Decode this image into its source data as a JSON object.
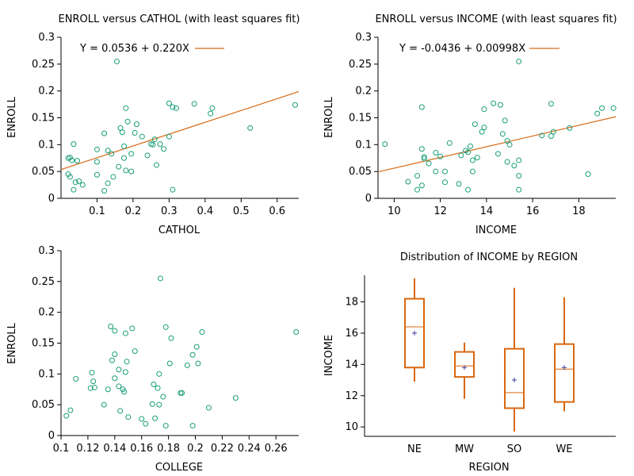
{
  "chart_data": [
    {
      "type": "scatter",
      "title": "ENROLL versus CATHOL (with least squares fit)",
      "xlabel": "CATHOL",
      "ylabel": "ENROLL",
      "xlim": [
        0,
        0.66
      ],
      "ylim": [
        0,
        0.3
      ],
      "xticks": [
        "0.1",
        "0.2",
        "0.3",
        "0.4",
        "0.5",
        "0.6"
      ],
      "yticks": [
        "0",
        "0.05",
        "0.1",
        "0.15",
        "0.2",
        "0.25",
        "0.3"
      ],
      "fit_label": "Y = 0.0536 + 0.220X",
      "fit": {
        "intercept": 0.0536,
        "slope": 0.22
      },
      "grid": false,
      "legend": "top-left",
      "points": [
        [
          0.155,
          0.255
        ],
        [
          0.3,
          0.177
        ],
        [
          0.31,
          0.17
        ],
        [
          0.32,
          0.168
        ],
        [
          0.18,
          0.168
        ],
        [
          0.37,
          0.176
        ],
        [
          0.42,
          0.168
        ],
        [
          0.415,
          0.158
        ],
        [
          0.525,
          0.131
        ],
        [
          0.65,
          0.174
        ],
        [
          0.185,
          0.143
        ],
        [
          0.165,
          0.131
        ],
        [
          0.21,
          0.138
        ],
        [
          0.17,
          0.123
        ],
        [
          0.12,
          0.121
        ],
        [
          0.205,
          0.122
        ],
        [
          0.225,
          0.115
        ],
        [
          0.26,
          0.11
        ],
        [
          0.3,
          0.115
        ],
        [
          0.25,
          0.101
        ],
        [
          0.255,
          0.1
        ],
        [
          0.275,
          0.101
        ],
        [
          0.285,
          0.092
        ],
        [
          0.1,
          0.091
        ],
        [
          0.13,
          0.089
        ],
        [
          0.14,
          0.083
        ],
        [
          0.175,
          0.097
        ],
        [
          0.195,
          0.083
        ],
        [
          0.24,
          0.08
        ],
        [
          0.035,
          0.101
        ],
        [
          0.025,
          0.076
        ],
        [
          0.03,
          0.071
        ],
        [
          0.02,
          0.075
        ],
        [
          0.045,
          0.07
        ],
        [
          0.1,
          0.068
        ],
        [
          0.175,
          0.075
        ],
        [
          0.16,
          0.059
        ],
        [
          0.265,
          0.062
        ],
        [
          0.18,
          0.052
        ],
        [
          0.195,
          0.05
        ],
        [
          0.02,
          0.045
        ],
        [
          0.025,
          0.04
        ],
        [
          0.1,
          0.044
        ],
        [
          0.04,
          0.03
        ],
        [
          0.05,
          0.032
        ],
        [
          0.06,
          0.025
        ],
        [
          0.13,
          0.028
        ],
        [
          0.145,
          0.04
        ],
        [
          0.035,
          0.016
        ],
        [
          0.12,
          0.014
        ],
        [
          0.31,
          0.016
        ]
      ]
    },
    {
      "type": "scatter",
      "title": "ENROLL versus INCOME (with least squares fit)",
      "xlabel": "INCOME",
      "ylabel": "ENROLL",
      "xlim": [
        9.3,
        19.6
      ],
      "ylim": [
        0,
        0.3
      ],
      "xticks": [
        "10",
        "12",
        "14",
        "16",
        "18"
      ],
      "yticks": [
        "0",
        "0.05",
        "0.1",
        "0.15",
        "0.2",
        "0.25",
        "0.3"
      ],
      "fit_label": "Y = -0.0436 + 0.00998X",
      "fit": {
        "intercept": -0.0436,
        "slope": 0.00998
      },
      "grid": false,
      "legend": "top-left",
      "points": [
        [
          15.4,
          0.255
        ],
        [
          14.3,
          0.177
        ],
        [
          14.6,
          0.174
        ],
        [
          16.8,
          0.176
        ],
        [
          11.2,
          0.17
        ],
        [
          19.0,
          0.168
        ],
        [
          19.5,
          0.168
        ],
        [
          13.9,
          0.166
        ],
        [
          18.8,
          0.158
        ],
        [
          14.8,
          0.145
        ],
        [
          13.5,
          0.138
        ],
        [
          13.9,
          0.132
        ],
        [
          13.8,
          0.124
        ],
        [
          16.9,
          0.124
        ],
        [
          14.7,
          0.12
        ],
        [
          16.4,
          0.117
        ],
        [
          16.8,
          0.116
        ],
        [
          17.6,
          0.131
        ],
        [
          14.9,
          0.107
        ],
        [
          9.6,
          0.101
        ],
        [
          12.4,
          0.103
        ],
        [
          13.3,
          0.097
        ],
        [
          15.0,
          0.1
        ],
        [
          11.2,
          0.092
        ],
        [
          13.1,
          0.089
        ],
        [
          13.2,
          0.086
        ],
        [
          14.5,
          0.083
        ],
        [
          11.8,
          0.085
        ],
        [
          12.0,
          0.078
        ],
        [
          12.9,
          0.08
        ],
        [
          11.3,
          0.077
        ],
        [
          11.3,
          0.074
        ],
        [
          13.6,
          0.076
        ],
        [
          13.4,
          0.071
        ],
        [
          15.4,
          0.071
        ],
        [
          14.9,
          0.068
        ],
        [
          11.5,
          0.065
        ],
        [
          15.2,
          0.061
        ],
        [
          11.8,
          0.05
        ],
        [
          13.4,
          0.05
        ],
        [
          12.2,
          0.05
        ],
        [
          15.4,
          0.042
        ],
        [
          11.0,
          0.042
        ],
        [
          18.4,
          0.045
        ],
        [
          10.6,
          0.031
        ],
        [
          12.2,
          0.03
        ],
        [
          12.8,
          0.027
        ],
        [
          11.2,
          0.024
        ],
        [
          11.0,
          0.016
        ],
        [
          13.2,
          0.016
        ],
        [
          15.4,
          0.016
        ]
      ]
    },
    {
      "type": "scatter",
      "title": "",
      "xlabel": "COLLEGE",
      "ylabel": "ENROLL",
      "xlim": [
        0.1,
        0.277
      ],
      "ylim": [
        0,
        0.3
      ],
      "xticks": [
        "0.1",
        "0.12",
        "0.14",
        "0.16",
        "0.18",
        "0.2",
        "0.22",
        "0.24",
        "0.26"
      ],
      "yticks": [
        "0",
        "0.05",
        "0.1",
        "0.15",
        "0.2",
        "0.25",
        "0.3"
      ],
      "grid": false,
      "points": [
        [
          0.174,
          0.255
        ],
        [
          0.137,
          0.177
        ],
        [
          0.153,
          0.174
        ],
        [
          0.178,
          0.176
        ],
        [
          0.14,
          0.17
        ],
        [
          0.148,
          0.166
        ],
        [
          0.182,
          0.158
        ],
        [
          0.205,
          0.168
        ],
        [
          0.275,
          0.168
        ],
        [
          0.201,
          0.144
        ],
        [
          0.155,
          0.137
        ],
        [
          0.14,
          0.132
        ],
        [
          0.198,
          0.131
        ],
        [
          0.138,
          0.122
        ],
        [
          0.149,
          0.12
        ],
        [
          0.181,
          0.117
        ],
        [
          0.194,
          0.114
        ],
        [
          0.202,
          0.117
        ],
        [
          0.143,
          0.107
        ],
        [
          0.148,
          0.103
        ],
        [
          0.123,
          0.102
        ],
        [
          0.173,
          0.1
        ],
        [
          0.111,
          0.092
        ],
        [
          0.14,
          0.093
        ],
        [
          0.124,
          0.088
        ],
        [
          0.169,
          0.083
        ],
        [
          0.143,
          0.08
        ],
        [
          0.125,
          0.078
        ],
        [
          0.122,
          0.077
        ],
        [
          0.135,
          0.075
        ],
        [
          0.146,
          0.075
        ],
        [
          0.172,
          0.077
        ],
        [
          0.147,
          0.071
        ],
        [
          0.19,
          0.069
        ],
        [
          0.189,
          0.069
        ],
        [
          0.176,
          0.063
        ],
        [
          0.23,
          0.061
        ],
        [
          0.132,
          0.05
        ],
        [
          0.168,
          0.051
        ],
        [
          0.173,
          0.05
        ],
        [
          0.21,
          0.045
        ],
        [
          0.107,
          0.041
        ],
        [
          0.144,
          0.04
        ],
        [
          0.104,
          0.032
        ],
        [
          0.15,
          0.03
        ],
        [
          0.16,
          0.027
        ],
        [
          0.17,
          0.028
        ],
        [
          0.163,
          0.019
        ],
        [
          0.178,
          0.016
        ],
        [
          0.198,
          0.016
        ]
      ]
    },
    {
      "type": "box",
      "title": "Distribution of INCOME by REGION",
      "xlabel": "REGION",
      "ylabel": "INCOME",
      "categories": [
        "NE",
        "MW",
        "SO",
        "WE"
      ],
      "ylim": [
        9.4,
        19.7
      ],
      "yticks": [
        "10",
        "12",
        "14",
        "16",
        "18"
      ],
      "grid": false,
      "boxes": [
        {
          "category": "NE",
          "min": 12.9,
          "q1": 13.8,
          "median": 16.4,
          "q3": 18.2,
          "max": 19.5,
          "mean": 16.0
        },
        {
          "category": "MW",
          "min": 11.8,
          "q1": 13.2,
          "median": 13.9,
          "q3": 14.8,
          "max": 15.4,
          "mean": 13.8
        },
        {
          "category": "SO",
          "min": 9.7,
          "q1": 11.2,
          "median": 12.2,
          "q3": 15.0,
          "max": 18.9,
          "mean": 13.0
        },
        {
          "category": "WE",
          "min": 11.0,
          "q1": 11.6,
          "median": 13.7,
          "q3": 15.3,
          "max": 18.3,
          "mean": 13.8
        }
      ]
    }
  ],
  "style": {
    "point_color": "#199e77",
    "fit_color": "#d66b17",
    "box_color": "#d9670f",
    "median_color": "#d9670f",
    "mean_marker_color": "#3b3b9c",
    "axis_color": "#000000"
  }
}
